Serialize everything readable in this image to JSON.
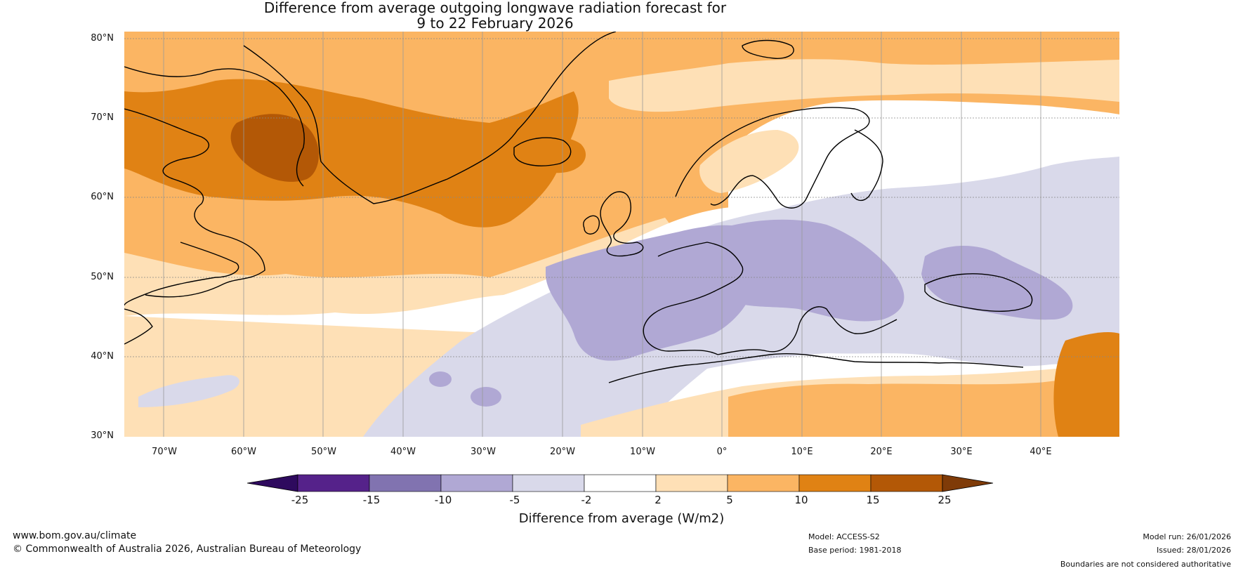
{
  "title": {
    "line1": "Difference from average outgoing longwave radiation forecast for",
    "line2": "9 to 22 February 2026"
  },
  "axes": {
    "lat_labels": [
      "80°N",
      "70°N",
      "60°N",
      "50°N",
      "40°N",
      "30°N"
    ],
    "lon_labels": [
      "70°W",
      "60°W",
      "50°W",
      "40°W",
      "30°W",
      "20°W",
      "10°W",
      "0°",
      "10°E",
      "20°E",
      "30°E",
      "40°E"
    ]
  },
  "colorbar": {
    "title": "Difference from average (W/m2)",
    "ticks": [
      "-25",
      "-15",
      "-10",
      "-5",
      "-2",
      "2",
      "5",
      "10",
      "15",
      "25"
    ],
    "colors": [
      "#2e0a5e",
      "#55228a",
      "#8173b0",
      "#b0a8d4",
      "#d9d9ea",
      "#ffffff",
      "#fee0b6",
      "#fbb563",
      "#e08214",
      "#b35806",
      "#7f3b08"
    ]
  },
  "footer": {
    "website": "www.bom.gov.au/climate",
    "copyright": "© Commonwealth of Australia 2026, Australian Bureau of Meteorology",
    "model": "Model: ACCESS-S2",
    "base_period": "Base period: 1981-2018",
    "model_run": "Model run: 26/01/2026",
    "issued": "Issued: 28/01/2026",
    "disclaimer": "Boundaries are not considered authoritative"
  }
}
